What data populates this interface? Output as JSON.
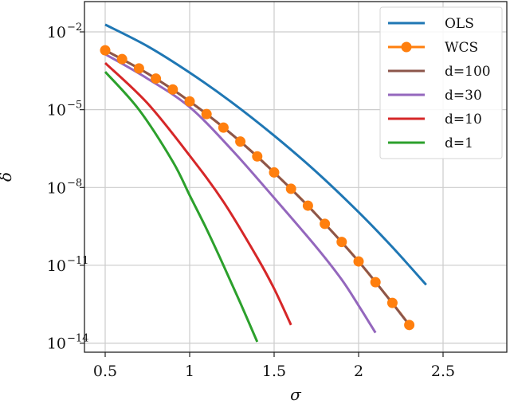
{
  "chart_data": {
    "type": "line",
    "title": "",
    "xlabel": "σ",
    "ylabel": "δ",
    "xscale": "linear",
    "yscale": "log",
    "xlim": [
      0.38,
      2.8
    ],
    "ylim_exponent": [
      -14.4,
      -0.9
    ],
    "x_ticks": [
      0.5,
      1,
      1.5,
      2,
      2.5
    ],
    "x_tick_labels": [
      "0.5",
      "1",
      "1.5",
      "2",
      "2.5"
    ],
    "y_ticks_exponent": [
      -2,
      -5,
      -8,
      -11,
      -14
    ],
    "y_tick_labels": [
      "10^-2",
      "10^-5",
      "10^-8",
      "10^-11",
      "10^-14"
    ],
    "grid": true,
    "legend_position": "upper right",
    "series": [
      {
        "name": "OLS",
        "color": "#1f77b4",
        "marker": "none",
        "x": [
          0.5,
          0.75,
          1.0,
          1.25,
          1.5,
          1.75,
          2.0,
          2.2,
          2.4
        ],
        "log10_y": [
          -1.72,
          -2.55,
          -3.57,
          -4.72,
          -6.0,
          -7.4,
          -8.95,
          -10.3,
          -11.75
        ]
      },
      {
        "name": "WCS",
        "color": "#ff7f0e",
        "marker": "circle",
        "x": [
          0.5,
          0.6,
          0.7,
          0.8,
          0.9,
          1.0,
          1.1,
          1.2,
          1.3,
          1.4,
          1.5,
          1.6,
          1.7,
          1.8,
          1.9,
          2.0,
          2.1,
          2.2,
          2.3
        ],
        "log10_y": [
          -2.71,
          -3.05,
          -3.41,
          -3.8,
          -4.22,
          -4.68,
          -5.17,
          -5.69,
          -6.23,
          -6.8,
          -7.42,
          -8.05,
          -8.7,
          -9.4,
          -10.1,
          -10.85,
          -11.65,
          -12.45,
          -13.3
        ]
      },
      {
        "name": "d=100",
        "color": "#8c564b",
        "marker": "none",
        "x": [
          0.5,
          0.75,
          1.0,
          1.25,
          1.5,
          1.75,
          2.0,
          2.15,
          2.3
        ],
        "log10_y": [
          -2.71,
          -3.6,
          -4.68,
          -5.95,
          -7.42,
          -9.05,
          -10.85,
          -12.05,
          -13.3
        ]
      },
      {
        "name": "d=30",
        "color": "#9467bd",
        "marker": "none",
        "x": [
          0.5,
          0.75,
          1.0,
          1.25,
          1.5,
          1.75,
          1.9,
          2.0,
          2.1
        ],
        "log10_y": [
          -2.86,
          -3.8,
          -4.9,
          -6.55,
          -8.4,
          -10.3,
          -11.55,
          -12.55,
          -13.6
        ]
      },
      {
        "name": "d=10",
        "color": "#d62728",
        "marker": "none",
        "x": [
          0.5,
          0.75,
          1.0,
          1.2,
          1.4,
          1.5,
          1.6
        ],
        "log10_y": [
          -3.2,
          -4.75,
          -6.77,
          -8.55,
          -10.7,
          -11.9,
          -13.3
        ]
      },
      {
        "name": "d=1",
        "color": "#2ca02c",
        "marker": "none",
        "x": [
          0.5,
          0.7,
          0.9,
          1.0,
          1.1,
          1.2,
          1.3,
          1.4
        ],
        "log10_y": [
          -3.54,
          -5.0,
          -7.0,
          -8.3,
          -9.6,
          -11.0,
          -12.45,
          -13.95
        ]
      }
    ]
  },
  "legend": {
    "items": [
      {
        "label": "OLS",
        "color": "#1f77b4",
        "marker": false
      },
      {
        "label": "WCS",
        "color": "#ff7f0e",
        "marker": true
      },
      {
        "label": "d=100",
        "color": "#8c564b",
        "marker": false
      },
      {
        "label": "d=30",
        "color": "#9467bd",
        "marker": false
      },
      {
        "label": "d=10",
        "color": "#d62728",
        "marker": false
      },
      {
        "label": "d=1",
        "color": "#2ca02c",
        "marker": false
      }
    ]
  },
  "axes": {
    "x_label": "σ",
    "y_label": "δ",
    "y_tick_base": "10",
    "y_tick_exponents": [
      "−2",
      "−5",
      "−8",
      "−11",
      "−14"
    ]
  }
}
